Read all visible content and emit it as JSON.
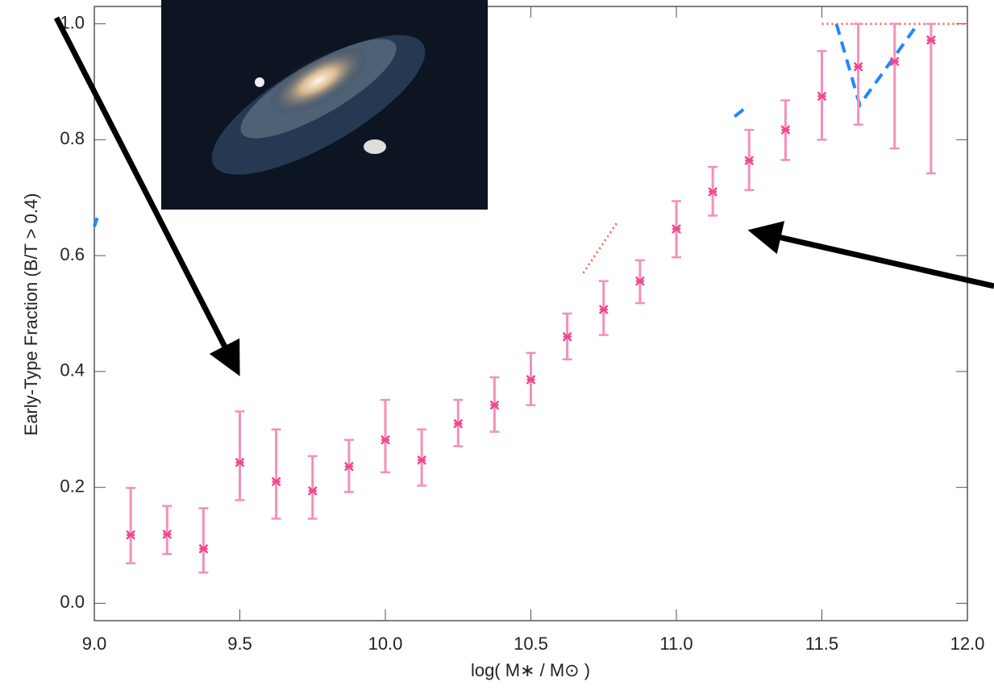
{
  "chart_data": {
    "type": "errorbar",
    "x_label": "log( M∗ / M⊙ )",
    "y_label": "Early-Type Fraction (B/T > 0.4)",
    "x": [
      9.125,
      9.25,
      9.375,
      9.5,
      9.625,
      9.75,
      9.875,
      10.0,
      10.125,
      10.25,
      10.375,
      10.5,
      10.625,
      10.75,
      10.875,
      11.0,
      11.125,
      11.25,
      11.375,
      11.5,
      11.625,
      11.75,
      11.875
    ],
    "values": [
      0.118,
      0.119,
      0.094,
      0.243,
      0.21,
      0.194,
      0.236,
      0.282,
      0.247,
      0.31,
      0.342,
      0.386,
      0.46,
      0.507,
      0.556,
      0.646,
      0.71,
      0.764,
      0.817,
      0.875,
      0.926,
      0.935,
      0.972
    ],
    "lower": [
      0.069,
      0.085,
      0.053,
      0.178,
      0.146,
      0.146,
      0.192,
      0.226,
      0.203,
      0.271,
      0.296,
      0.342,
      0.421,
      0.463,
      0.518,
      0.597,
      0.669,
      0.713,
      0.765,
      0.8,
      0.826,
      0.785,
      0.742
    ],
    "upper": [
      0.199,
      0.168,
      0.164,
      0.331,
      0.3,
      0.254,
      0.282,
      0.351,
      0.3,
      0.351,
      0.39,
      0.432,
      0.5,
      0.556,
      0.592,
      0.694,
      0.753,
      0.817,
      0.868,
      0.953,
      1.0,
      1.0,
      1.0
    ],
    "color": "#f0478f",
    "bar_color": "#f58fb8",
    "lines": [
      {
        "color": "#1e88ff",
        "dash": "dashed",
        "x": [
          11.2,
          11.25
        ],
        "values": [
          0.84,
          0.86
        ]
      },
      {
        "color": "#1e88ff",
        "dash": "dashed",
        "x": [
          11.55,
          11.63,
          11.83
        ],
        "values": [
          1.0,
          0.86,
          1.0
        ]
      },
      {
        "color": "#1e88ff",
        "dash": "dashed",
        "x": [
          9.0,
          9.01
        ],
        "values": [
          0.65,
          0.665
        ]
      },
      {
        "color": "#ff5a3c",
        "dash": "dotted",
        "x": [
          10.68,
          10.8
        ],
        "values": [
          0.57,
          0.66
        ]
      },
      {
        "color": "#ff5a3c",
        "dash": "dotted",
        "x": [
          11.5,
          12.0
        ],
        "values": [
          1.0,
          1.0
        ]
      }
    ],
    "xlim": [
      9.0,
      12.0
    ],
    "ylim": [
      -0.03,
      1.03
    ],
    "xticks": [
      {
        "value": 9.0,
        "label": "9.0"
      },
      9.5,
      {
        "value": 10.0,
        "label": "10.0"
      },
      10.5,
      {
        "value": 11.0,
        "label": "11.0"
      },
      11.5,
      {
        "value": 12.0,
        "label": "12.0"
      }
    ],
    "yticks": [
      {
        "value": 0.0,
        "label": "0.0"
      },
      0.2,
      0.4,
      0.6,
      0.8,
      {
        "value": 1.0,
        "label": "1.0"
      }
    ]
  }
}
